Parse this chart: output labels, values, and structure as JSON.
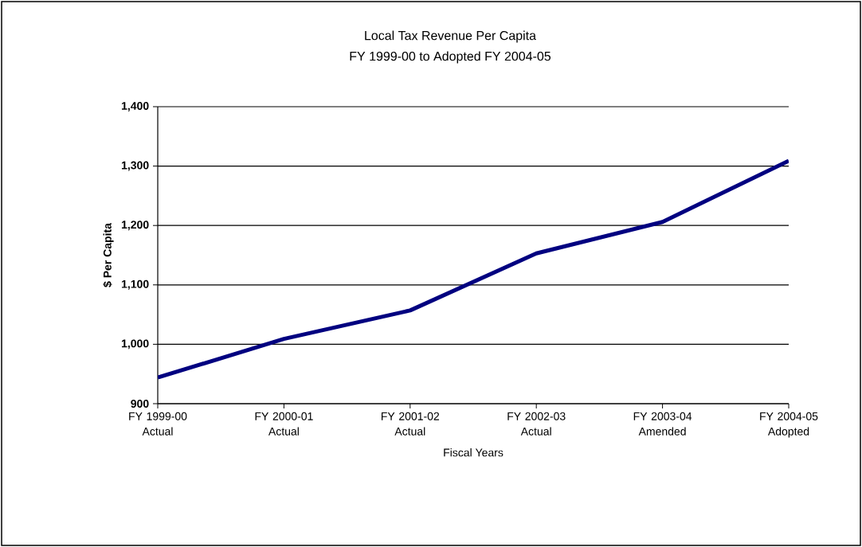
{
  "chart_data": {
    "type": "line",
    "title": "Local Tax Revenue Per Capita",
    "subtitle": "FY 1999-00 to Adopted FY 2004-05",
    "xlabel": "Fiscal Years",
    "ylabel": "$ Per Capita",
    "categories": [
      "FY 1999-00 Actual",
      "FY 2000-01 Actual",
      "FY 2001-02 Actual",
      "FY 2002-03 Actual",
      "FY 2003-04 Amended",
      "FY 2004-05 Adopted"
    ],
    "series": [
      {
        "color": "#000080",
        "values": [
          944,
          1009,
          1057,
          1153,
          1206,
          1309
        ]
      }
    ],
    "ylim": [
      900,
      1400
    ],
    "yticks": [
      {
        "value": 900,
        "label": "900"
      },
      {
        "value": 1000,
        "label": "1,000"
      },
      {
        "value": 1100,
        "label": "1,100"
      },
      {
        "value": 1200,
        "label": "1,200"
      },
      {
        "value": 1300,
        "label": "1,300"
      },
      {
        "value": 1400,
        "label": "1,400"
      }
    ],
    "grid": "y",
    "marker": "none",
    "line_style": "solid"
  }
}
